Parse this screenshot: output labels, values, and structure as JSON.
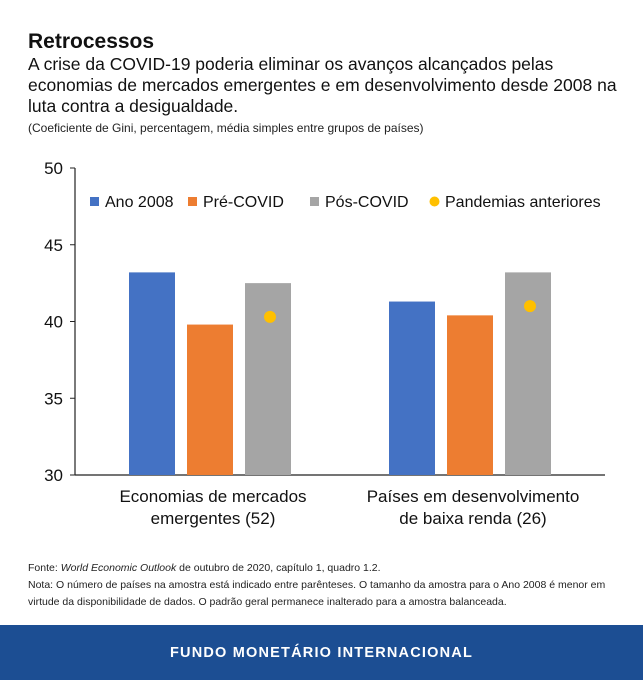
{
  "header": {
    "title": "Retrocessos",
    "subtitle": "A crise da COVID-19 poderia eliminar os avanços alcançados pelas economias de mercados emergentes e em desenvolvimento desde 2008 na luta contra a desigualdade.",
    "units_note": "(Coeficiente de Gini, percentagem, média simples entre grupos de países)"
  },
  "chart_data": {
    "type": "bar",
    "categories": [
      "Economias de mercados emergentes (52)",
      "Países em desenvolvimento de baixa renda (26)"
    ],
    "category_lines": [
      [
        "Economias de mercados",
        "emergentes (52)"
      ],
      [
        "Países em desenvolvimento",
        "de baixa renda (26)"
      ]
    ],
    "series": [
      {
        "name": "Ano 2008",
        "type": "bar",
        "color": "#4472c4",
        "values": [
          43.2,
          41.3
        ]
      },
      {
        "name": "Pré-COVID",
        "type": "bar",
        "color": "#ed7d31",
        "values": [
          39.8,
          40.4
        ]
      },
      {
        "name": "Pós-COVID",
        "type": "bar",
        "color": "#a5a5a5",
        "values": [
          42.5,
          43.2
        ]
      },
      {
        "name": "Pandemias anteriores",
        "type": "point",
        "color": "#ffc000",
        "values": [
          40.3,
          41.0
        ]
      }
    ],
    "ylim": [
      30,
      50
    ],
    "yticks": [
      "30",
      "35",
      "40",
      "45",
      "50"
    ],
    "grid": false,
    "legend_position": "top"
  },
  "footer": {
    "source_prefix": "Fonte: ",
    "source_title": "World Economic Outlook",
    "source_suffix": " de outubro de 2020, capítulo 1, quadro 1.2.",
    "note": "Nota: O número de países na amostra está indicado entre parênteses. O tamanho da amostra para o Ano 2008 é menor em virtude da disponibilidade de dados. O padrão geral permanece inalterado para a amostra balanceada."
  },
  "org_band": "FUNDO MONETÁRIO INTERNACIONAL"
}
